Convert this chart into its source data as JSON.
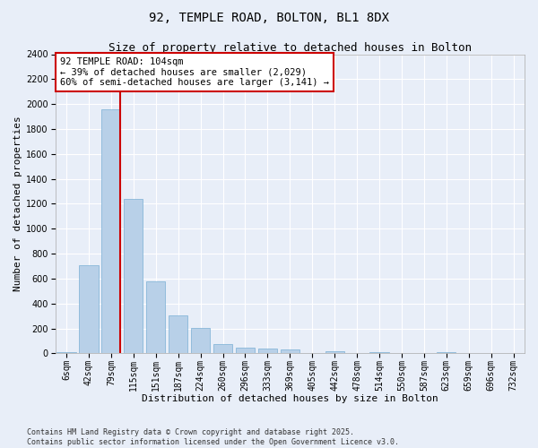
{
  "title": "92, TEMPLE ROAD, BOLTON, BL1 8DX",
  "subtitle": "Size of property relative to detached houses in Bolton",
  "xlabel": "Distribution of detached houses by size in Bolton",
  "ylabel": "Number of detached properties",
  "categories": [
    "6sqm",
    "42sqm",
    "79sqm",
    "115sqm",
    "151sqm",
    "187sqm",
    "224sqm",
    "260sqm",
    "296sqm",
    "333sqm",
    "369sqm",
    "405sqm",
    "442sqm",
    "478sqm",
    "514sqm",
    "550sqm",
    "587sqm",
    "623sqm",
    "659sqm",
    "696sqm",
    "732sqm"
  ],
  "values": [
    10,
    710,
    1960,
    1240,
    580,
    305,
    205,
    75,
    45,
    35,
    30,
    0,
    20,
    0,
    10,
    0,
    0,
    10,
    0,
    0,
    0
  ],
  "bar_color": "#b8d0e8",
  "bar_edge_color": "#7aafd4",
  "vline_color": "#cc0000",
  "annotation_text": "92 TEMPLE ROAD: 104sqm\n← 39% of detached houses are smaller (2,029)\n60% of semi-detached houses are larger (3,141) →",
  "annotation_box_facecolor": "#ffffff",
  "annotation_box_edgecolor": "#cc0000",
  "ylim": [
    0,
    2400
  ],
  "yticks": [
    0,
    200,
    400,
    600,
    800,
    1000,
    1200,
    1400,
    1600,
    1800,
    2000,
    2200,
    2400
  ],
  "background_color": "#e8eef8",
  "grid_color": "#ffffff",
  "footer": "Contains HM Land Registry data © Crown copyright and database right 2025.\nContains public sector information licensed under the Open Government Licence v3.0.",
  "title_fontsize": 10,
  "subtitle_fontsize": 9,
  "xlabel_fontsize": 8,
  "ylabel_fontsize": 8,
  "tick_fontsize": 7,
  "annotation_fontsize": 7.5,
  "footer_fontsize": 6
}
